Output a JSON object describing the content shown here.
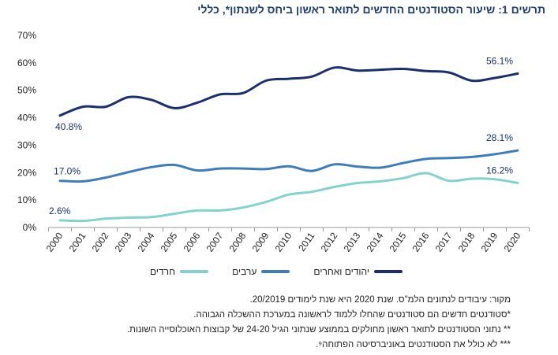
{
  "chart_data": {
    "type": "line",
    "title": "תרשים 1: שיעור הסטודנטים החדשים לתואר ראשון ביחס לשנתון*, כללי",
    "xlabel": "",
    "ylabel": "",
    "ylim": [
      0,
      70
    ],
    "yticks": [
      "0%",
      "10%",
      "20%",
      "30%",
      "40%",
      "50%",
      "60%",
      "70%"
    ],
    "x": [
      "2000",
      "2001",
      "2002",
      "2003",
      "2004",
      "2005",
      "2006",
      "2007",
      "2008",
      "2009",
      "2010",
      "2011",
      "2012",
      "2013",
      "2014",
      "2015",
      "2016",
      "2017",
      "2018",
      "2019",
      "2020"
    ],
    "series": [
      {
        "name": "יהודים ואחרים",
        "color": "#1b2f6e",
        "values": [
          40.8,
          44,
          44,
          47.5,
          46.5,
          43.5,
          45.5,
          48.5,
          49,
          53.5,
          54.2,
          55,
          58.3,
          57.2,
          57.5,
          57.8,
          57,
          56.5,
          53.5,
          54.5,
          56.1
        ],
        "start_label": "40.8%",
        "end_label": "56.1%"
      },
      {
        "name": "ערבים",
        "color": "#3e7dbc",
        "values": [
          17.0,
          16.8,
          18.2,
          20.2,
          22.0,
          22.8,
          20.8,
          21.5,
          21.5,
          21.3,
          22.3,
          20.6,
          23.0,
          22.2,
          21.8,
          23.5,
          25.0,
          25.3,
          25.7,
          26.7,
          28.1
        ],
        "start_label": "17.0%",
        "end_label": "28.1%"
      },
      {
        "name": "חרדים",
        "color": "#84d2ce",
        "values": [
          2.6,
          2.4,
          3.2,
          3.6,
          3.8,
          5.0,
          6.2,
          6.2,
          7.3,
          9.3,
          12.0,
          13.0,
          14.8,
          16.2,
          16.8,
          18.0,
          19.8,
          17.0,
          17.8,
          17.6,
          16.2
        ],
        "start_label": "2.6%",
        "end_label": "16.2%"
      }
    ],
    "legend_order": [
      "יהודים ואחרים",
      "ערבים",
      "חרדים"
    ],
    "legend_position": "bottom",
    "grid": false
  },
  "notes": {
    "source": "מקור: עיבודים לנתונים הלמ\"ס. שנת 2020 היא שנת לימודים 20/2019.",
    "note1": "*סטודנטים חדשים הם סטודנטים שהחלו ללמוד לראשונה במערכת ההשכלה הגבוהה.",
    "note2": "** נתוני הסטודנטים לתואר ראשון מחולקים בממוצע שנתוני הגיל 24-20 של קבוצות האוכלוסייה השונות.",
    "note3": "*** לא כולל את הסטודנטים באוניברסיטה הפתוחה⁹."
  },
  "colors": {
    "title": "#1f3f6e",
    "axis": "#888888",
    "text": "#222222"
  }
}
